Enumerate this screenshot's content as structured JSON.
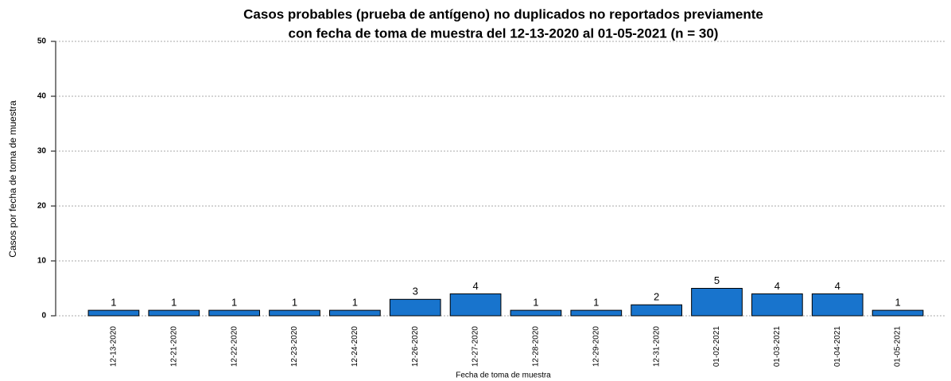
{
  "chart_data": {
    "type": "bar",
    "title": [
      "Casos probables (prueba de antígeno) no duplicados no reportados previamente",
      "con fecha de toma de muestra del 12-13-2020 al 01-05-2021 (n = 30)"
    ],
    "x_label": "Fecha de toma de muestra",
    "y_label": "Casos por fecha de toma de muestra",
    "categories": [
      "12-13-2020",
      "12-21-2020",
      "12-22-2020",
      "12-23-2020",
      "12-24-2020",
      "12-26-2020",
      "12-27-2020",
      "12-28-2020",
      "12-29-2020",
      "12-31-2020",
      "01-02-2021",
      "01-03-2021",
      "01-04-2021",
      "01-05-2021"
    ],
    "values": [
      1,
      1,
      1,
      1,
      1,
      3,
      4,
      1,
      1,
      2,
      5,
      4,
      4,
      1
    ],
    "color": "#1874cd",
    "ylim": [
      0,
      50
    ],
    "yticks": [
      0,
      10,
      20,
      30,
      40,
      50
    ],
    "grid": true
  }
}
